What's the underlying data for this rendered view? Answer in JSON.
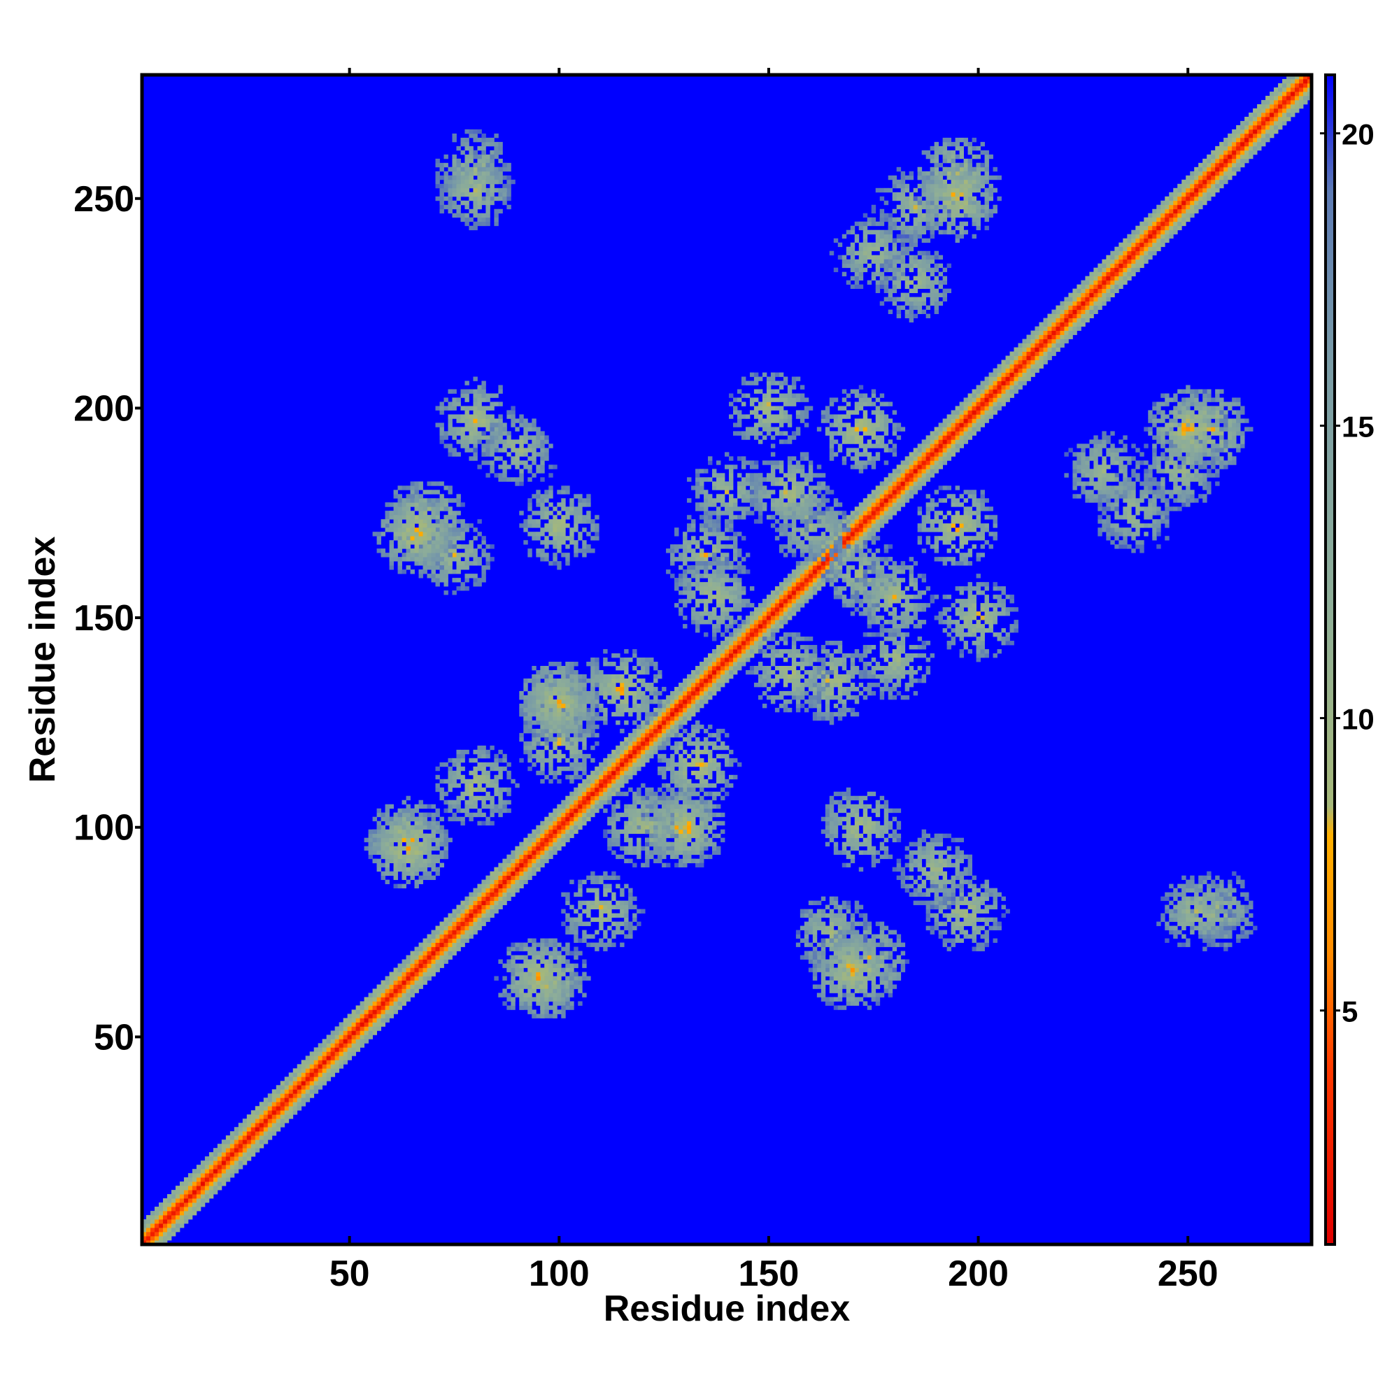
{
  "chart_data": {
    "type": "heatmap",
    "title": "",
    "xlabel": "Residue index",
    "ylabel": "Residue index",
    "n_residues": 279,
    "xlim": [
      1,
      279
    ],
    "ylim": [
      1,
      279
    ],
    "x_ticks": [
      50,
      100,
      150,
      200,
      250
    ],
    "y_ticks": [
      50,
      100,
      150,
      200,
      250
    ],
    "x_tick_labels": [
      "50",
      "100",
      "150",
      "200",
      "250"
    ],
    "y_tick_labels": [
      "50",
      "100",
      "150",
      "200",
      "250"
    ],
    "colorbar": {
      "range": [
        1,
        21
      ],
      "ticks": [
        5,
        10,
        15,
        20
      ],
      "tick_labels": [
        "5",
        "10",
        "15",
        "20"
      ],
      "stops": [
        {
          "value": 1,
          "color": "#e00000"
        },
        {
          "value": 4,
          "color": "#ff3a00"
        },
        {
          "value": 6,
          "color": "#ff8c00"
        },
        {
          "value": 8,
          "color": "#ffb000"
        },
        {
          "value": 8.5,
          "color": "#a6b87a"
        },
        {
          "value": 12,
          "color": "#8eae98"
        },
        {
          "value": 16,
          "color": "#7a9ca6"
        },
        {
          "value": 19,
          "color": "#5d7bb4"
        },
        {
          "value": 21,
          "color": "#0000ff"
        }
      ]
    },
    "background_color": "#0000ff",
    "background_value": 21,
    "symmetric": true,
    "diagonal": {
      "from": 1,
      "to": 279,
      "core_value": 1.5,
      "band_halfwidth": 5
    },
    "contact_clusters": [
      {
        "i": 64,
        "j": 97,
        "value": 6
      },
      {
        "i": 68,
        "j": 173,
        "value": 6
      },
      {
        "i": 80,
        "j": 197,
        "value": 7
      },
      {
        "i": 80,
        "j": 257,
        "value": 8
      },
      {
        "i": 95,
        "j": 64,
        "value": 6
      },
      {
        "i": 100,
        "j": 172,
        "value": 7
      },
      {
        "i": 100,
        "j": 128,
        "value": 7
      },
      {
        "i": 110,
        "j": 80,
        "value": 7
      },
      {
        "i": 115,
        "j": 133,
        "value": 6
      },
      {
        "i": 120,
        "j": 100,
        "value": 7
      },
      {
        "i": 130,
        "j": 100,
        "value": 6
      },
      {
        "i": 135,
        "j": 165,
        "value": 7
      },
      {
        "i": 140,
        "j": 180,
        "value": 8
      },
      {
        "i": 155,
        "j": 137,
        "value": 7
      },
      {
        "i": 160,
        "j": 172,
        "value": 8
      },
      {
        "i": 165,
        "j": 75,
        "value": 8
      },
      {
        "i": 170,
        "j": 66,
        "value": 6
      },
      {
        "i": 172,
        "j": 195,
        "value": 6
      },
      {
        "i": 175,
        "j": 237,
        "value": 8
      },
      {
        "i": 180,
        "j": 155,
        "value": 7
      },
      {
        "i": 185,
        "j": 248,
        "value": 8
      },
      {
        "i": 190,
        "j": 90,
        "value": 8
      },
      {
        "i": 195,
        "j": 255,
        "value": 6
      },
      {
        "i": 200,
        "j": 150,
        "value": 7
      },
      {
        "i": 230,
        "j": 185,
        "value": 8
      },
      {
        "i": 250,
        "j": 195,
        "value": 6
      },
      {
        "i": 252,
        "j": 80,
        "value": 8
      }
    ]
  }
}
